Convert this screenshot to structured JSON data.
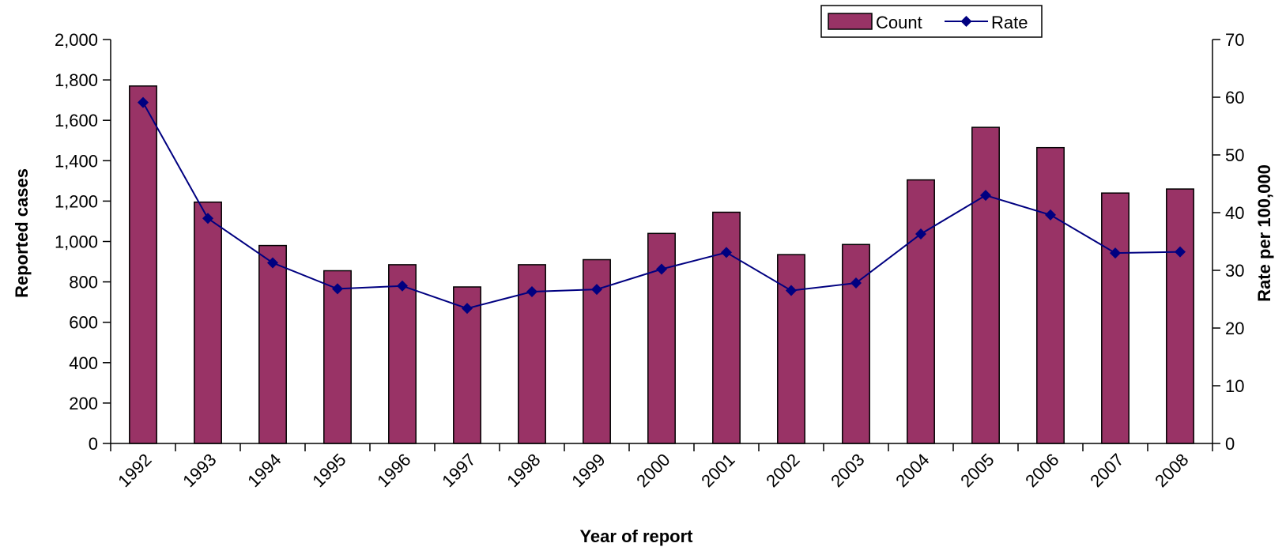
{
  "chart_data": {
    "type": "bar",
    "categories": [
      "1992",
      "1993",
      "1994",
      "1995",
      "1996",
      "1997",
      "1998",
      "1999",
      "2000",
      "2001",
      "2002",
      "2003",
      "2004",
      "2005",
      "2006",
      "2007",
      "2008"
    ],
    "series": [
      {
        "name": "Count",
        "type": "bar",
        "axis": "left",
        "values": [
          1770,
          1195,
          980,
          855,
          885,
          775,
          885,
          910,
          1040,
          1145,
          935,
          985,
          1305,
          1565,
          1465,
          1240,
          1260
        ]
      },
      {
        "name": "Rate",
        "type": "line",
        "axis": "right",
        "values": [
          59.1,
          39.0,
          31.3,
          26.8,
          27.3,
          23.4,
          26.3,
          26.7,
          30.2,
          33.1,
          26.5,
          27.8,
          36.3,
          43.0,
          39.6,
          33.0,
          33.2
        ]
      }
    ],
    "xlabel": "Year of report",
    "ylabel": "Reported cases",
    "y2label": "Rate per 100,000",
    "ylim": [
      0,
      2000
    ],
    "y2lim": [
      0,
      70
    ],
    "yticks": [
      "0",
      "200",
      "400",
      "600",
      "800",
      "1,000",
      "1,200",
      "1,400",
      "1,600",
      "1,800",
      "2,000"
    ],
    "y2ticks": [
      "0",
      "10",
      "20",
      "30",
      "40",
      "50",
      "60",
      "70"
    ],
    "grid": false,
    "legend_position": "top-right"
  },
  "colors": {
    "bar_fill": "#993366",
    "line": "#000080",
    "marker": "#000080"
  }
}
